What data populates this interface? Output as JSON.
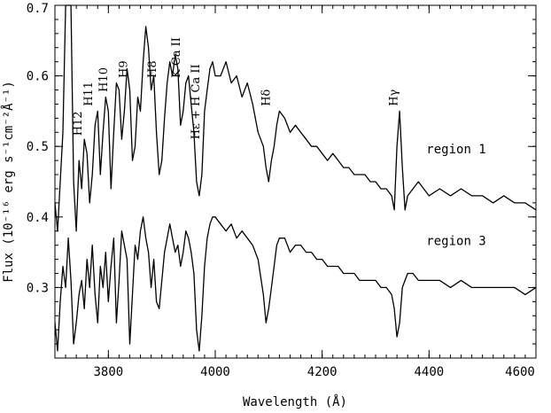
{
  "chart_data": {
    "type": "line",
    "xlabel": "Wavelength (Å)",
    "ylabel": "Flux (10⁻¹⁶ erg s⁻¹cm⁻²Å⁻¹)",
    "xlim": [
      3700,
      4600
    ],
    "ylim": [
      0.2,
      0.7
    ],
    "x_ticks": [
      3800,
      4000,
      4200,
      4400,
      4600
    ],
    "x_tick_labels": [
      "3800",
      "4000",
      "4200",
      "4400",
      "4600"
    ],
    "y_ticks": [
      0.3,
      0.4,
      0.5,
      0.6,
      0.7
    ],
    "y_tick_labels": [
      "0.3",
      "0.4",
      "0.5",
      "0.6",
      "0.7"
    ],
    "x_minor_step": 20,
    "y_minor_step": 0.02,
    "line_color": "#000000",
    "series": [
      {
        "name": "region 1",
        "x": [
          3700,
          3705,
          3710,
          3715,
          3720,
          3725,
          3730,
          3735,
          3740,
          3745,
          3750,
          3755,
          3760,
          3765,
          3770,
          3775,
          3780,
          3785,
          3790,
          3795,
          3800,
          3805,
          3810,
          3815,
          3820,
          3825,
          3830,
          3835,
          3840,
          3845,
          3850,
          3855,
          3860,
          3865,
          3870,
          3875,
          3880,
          3885,
          3890,
          3895,
          3900,
          3905,
          3910,
          3915,
          3920,
          3925,
          3930,
          3935,
          3940,
          3945,
          3950,
          3955,
          3960,
          3965,
          3970,
          3975,
          3980,
          3985,
          3990,
          3995,
          4000,
          4010,
          4020,
          4030,
          4040,
          4050,
          4060,
          4070,
          4080,
          4090,
          4095,
          4100,
          4105,
          4110,
          4115,
          4120,
          4130,
          4140,
          4150,
          4160,
          4170,
          4180,
          4190,
          4200,
          4210,
          4220,
          4230,
          4240,
          4250,
          4260,
          4270,
          4280,
          4290,
          4300,
          4310,
          4320,
          4330,
          4335,
          4340,
          4345,
          4350,
          4355,
          4360,
          4370,
          4380,
          4390,
          4400,
          4420,
          4440,
          4460,
          4480,
          4500,
          4520,
          4540,
          4560,
          4580,
          4600
        ],
        "y": [
          0.42,
          0.38,
          0.45,
          0.52,
          0.72,
          0.84,
          0.7,
          0.45,
          0.38,
          0.48,
          0.44,
          0.51,
          0.49,
          0.42,
          0.46,
          0.53,
          0.55,
          0.46,
          0.52,
          0.57,
          0.55,
          0.44,
          0.52,
          0.59,
          0.58,
          0.51,
          0.55,
          0.61,
          0.58,
          0.48,
          0.5,
          0.57,
          0.55,
          0.62,
          0.67,
          0.64,
          0.58,
          0.6,
          0.52,
          0.46,
          0.48,
          0.54,
          0.59,
          0.62,
          0.6,
          0.63,
          0.61,
          0.53,
          0.55,
          0.59,
          0.6,
          0.56,
          0.52,
          0.45,
          0.43,
          0.46,
          0.55,
          0.58,
          0.61,
          0.62,
          0.6,
          0.6,
          0.62,
          0.59,
          0.6,
          0.57,
          0.59,
          0.56,
          0.52,
          0.5,
          0.47,
          0.45,
          0.48,
          0.5,
          0.53,
          0.55,
          0.54,
          0.52,
          0.53,
          0.52,
          0.51,
          0.5,
          0.5,
          0.49,
          0.48,
          0.49,
          0.48,
          0.47,
          0.47,
          0.46,
          0.46,
          0.46,
          0.45,
          0.45,
          0.44,
          0.44,
          0.43,
          0.41,
          0.5,
          0.55,
          0.47,
          0.41,
          0.43,
          0.44,
          0.45,
          0.44,
          0.43,
          0.44,
          0.43,
          0.44,
          0.43,
          0.43,
          0.42,
          0.43,
          0.42,
          0.42,
          0.41
        ]
      },
      {
        "name": "region 3",
        "x": [
          3700,
          3705,
          3710,
          3715,
          3720,
          3725,
          3730,
          3735,
          3740,
          3745,
          3750,
          3755,
          3760,
          3765,
          3770,
          3775,
          3780,
          3785,
          3790,
          3795,
          3800,
          3805,
          3810,
          3815,
          3820,
          3825,
          3830,
          3835,
          3840,
          3845,
          3850,
          3855,
          3860,
          3865,
          3870,
          3875,
          3880,
          3885,
          3890,
          3895,
          3900,
          3905,
          3910,
          3915,
          3920,
          3925,
          3930,
          3935,
          3940,
          3945,
          3950,
          3955,
          3960,
          3965,
          3970,
          3975,
          3980,
          3985,
          3990,
          3995,
          4000,
          4010,
          4020,
          4030,
          4040,
          4050,
          4060,
          4070,
          4080,
          4090,
          4095,
          4100,
          4105,
          4110,
          4115,
          4120,
          4130,
          4140,
          4150,
          4160,
          4170,
          4180,
          4190,
          4200,
          4210,
          4220,
          4230,
          4240,
          4250,
          4260,
          4270,
          4280,
          4290,
          4300,
          4310,
          4320,
          4330,
          4335,
          4340,
          4345,
          4350,
          4355,
          4360,
          4370,
          4380,
          4390,
          4400,
          4420,
          4440,
          4460,
          4480,
          4500,
          4520,
          4540,
          4560,
          4580,
          4600
        ],
        "y": [
          0.25,
          0.21,
          0.28,
          0.33,
          0.3,
          0.37,
          0.31,
          0.22,
          0.25,
          0.29,
          0.31,
          0.27,
          0.34,
          0.3,
          0.36,
          0.29,
          0.25,
          0.33,
          0.3,
          0.35,
          0.28,
          0.33,
          0.37,
          0.25,
          0.31,
          0.38,
          0.36,
          0.34,
          0.22,
          0.29,
          0.36,
          0.34,
          0.38,
          0.4,
          0.37,
          0.35,
          0.3,
          0.34,
          0.28,
          0.27,
          0.31,
          0.35,
          0.37,
          0.39,
          0.37,
          0.35,
          0.36,
          0.33,
          0.35,
          0.38,
          0.37,
          0.35,
          0.32,
          0.24,
          0.21,
          0.26,
          0.33,
          0.37,
          0.39,
          0.4,
          0.4,
          0.39,
          0.38,
          0.39,
          0.37,
          0.38,
          0.37,
          0.36,
          0.34,
          0.29,
          0.25,
          0.27,
          0.3,
          0.33,
          0.36,
          0.37,
          0.37,
          0.35,
          0.36,
          0.36,
          0.35,
          0.35,
          0.34,
          0.34,
          0.33,
          0.33,
          0.33,
          0.32,
          0.32,
          0.32,
          0.31,
          0.31,
          0.31,
          0.31,
          0.3,
          0.3,
          0.29,
          0.27,
          0.23,
          0.25,
          0.3,
          0.31,
          0.32,
          0.32,
          0.31,
          0.31,
          0.31,
          0.31,
          0.3,
          0.31,
          0.3,
          0.3,
          0.3,
          0.3,
          0.3,
          0.29,
          0.3
        ]
      }
    ],
    "annotations": [
      {
        "text": "H12",
        "x": 3750,
        "y": 0.515
      },
      {
        "text": "H11",
        "x": 3770,
        "y": 0.557
      },
      {
        "text": "H10",
        "x": 3798,
        "y": 0.577
      },
      {
        "text": "H9",
        "x": 3835,
        "y": 0.597
      },
      {
        "text": "H8",
        "x": 3889,
        "y": 0.597
      },
      {
        "text": "K  Ca II",
        "x": 3934,
        "y": 0.597
      },
      {
        "text": "Hε + H Ca II",
        "x": 3970,
        "y": 0.51
      },
      {
        "text": "Hδ",
        "x": 4102,
        "y": 0.557
      },
      {
        "text": "Hγ",
        "x": 4341,
        "y": 0.557
      }
    ],
    "series_labels": [
      {
        "text": "region 1",
        "x": 4395,
        "y": 0.49
      },
      {
        "text": "region 3",
        "x": 4395,
        "y": 0.36
      }
    ]
  }
}
